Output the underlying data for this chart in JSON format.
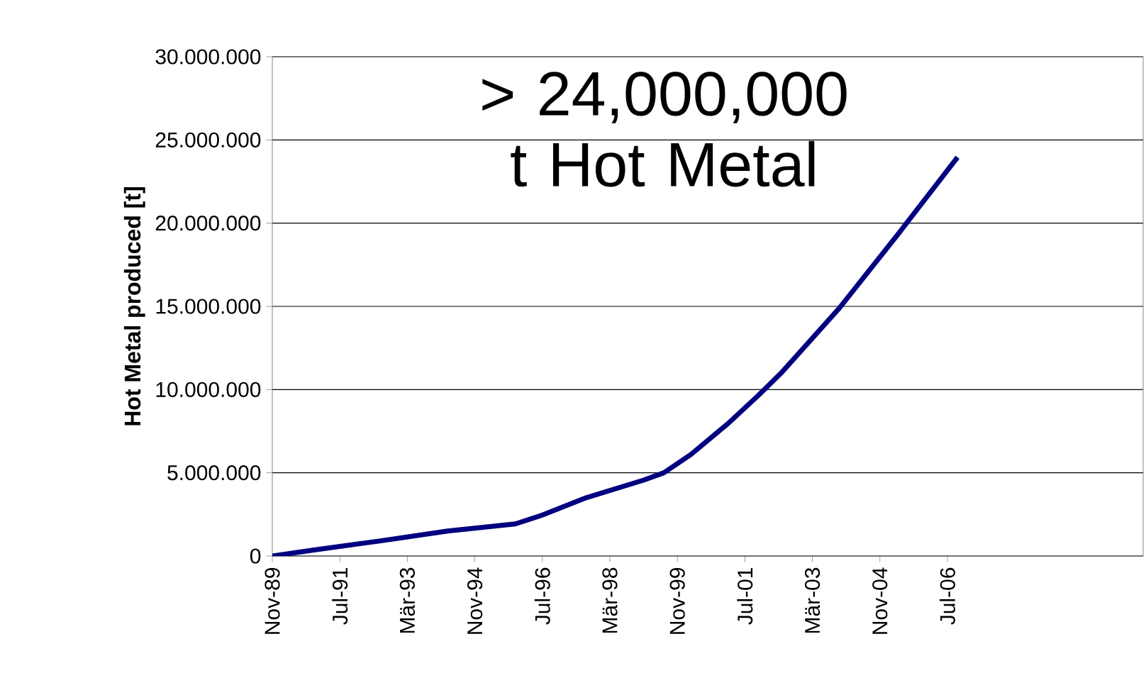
{
  "chart_data": {
    "type": "line",
    "ylabel": "Hot Metal produced [t]",
    "annotations": [
      "> 24,000,000 t Hot Metal"
    ],
    "x": [
      "1989-11",
      "1990-11",
      "1992-06",
      "1994-03",
      "1995-11",
      "1996-07",
      "1997-08",
      "1999-01",
      "1999-07",
      "2000-03",
      "2001-02",
      "2001-11",
      "2002-06",
      "2003-11",
      "2005-05",
      "2006-10"
    ],
    "series": [
      {
        "color": "#000080",
        "values": [
          0,
          350000,
          880000,
          1500000,
          1930000,
          2460000,
          3500000,
          4560000,
          5000000,
          6100000,
          7960000,
          9650000,
          11050000,
          14900000,
          19500000,
          23960000
        ]
      }
    ],
    "xlim": [
      "1989-11",
      "2011-05"
    ],
    "xticks": [
      {
        "value": "1989-11",
        "label": "Nov-89"
      },
      {
        "value": "1991-07",
        "label": "Jul-91"
      },
      {
        "value": "1993-03",
        "label": "Mär-93"
      },
      {
        "value": "1994-11",
        "label": "Nov-94"
      },
      {
        "value": "1996-07",
        "label": "Jul-96"
      },
      {
        "value": "1998-03",
        "label": "Mär-98"
      },
      {
        "value": "1999-11",
        "label": "Nov-99"
      },
      {
        "value": "2001-07",
        "label": "Jul-01"
      },
      {
        "value": "2003-03",
        "label": "Mär-03"
      },
      {
        "value": "2004-11",
        "label": "Nov-04"
      },
      {
        "value": "2006-07",
        "label": "Jul-06"
      }
    ],
    "ylim": [
      0,
      30000000
    ],
    "yticks": [
      0,
      {
        "value": 5000000,
        "label": "5.000.000"
      },
      {
        "value": 10000000,
        "label": "10.000.000"
      },
      {
        "value": 15000000,
        "label": "15.000.000"
      },
      {
        "value": 20000000,
        "label": "20.000.000"
      },
      {
        "value": 25000000,
        "label": "25.000.000"
      },
      {
        "value": 30000000,
        "label": "30.000.000"
      }
    ],
    "grid": "y"
  }
}
